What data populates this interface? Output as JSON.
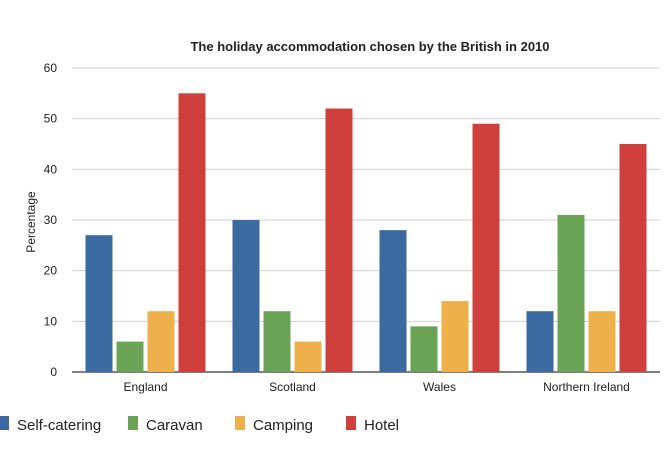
{
  "chart_data": {
    "type": "bar",
    "title": "The holiday accommodation chosen by the British in 2010",
    "xlabel": "",
    "ylabel": "Percentage",
    "ylim": [
      0,
      60
    ],
    "yticks": [
      0,
      10,
      20,
      30,
      40,
      50,
      60
    ],
    "grid": true,
    "legend_position": "bottom",
    "categories": [
      "England",
      "Scotland",
      "Wales",
      "Northern Ireland"
    ],
    "series": [
      {
        "name": "Self-catering",
        "color": "#3a6aa0",
        "values": [
          27,
          30,
          28,
          12
        ]
      },
      {
        "name": "Caravan",
        "color": "#6aa356",
        "values": [
          6,
          12,
          9,
          31
        ]
      },
      {
        "name": "Camping",
        "color": "#eeb04a",
        "values": [
          12,
          6,
          14,
          12
        ]
      },
      {
        "name": "Hotel",
        "color": "#cf3f3c",
        "values": [
          55,
          52,
          49,
          45
        ]
      }
    ]
  }
}
